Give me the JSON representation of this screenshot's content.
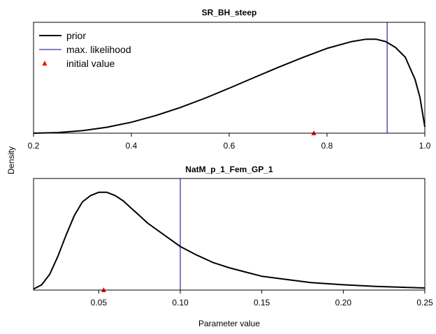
{
  "figure": {
    "shared_ylabel": "Density",
    "shared_xlabel": "Parameter value",
    "legend": {
      "position": "top-left",
      "entries": [
        {
          "label": "prior",
          "style": "line",
          "color": "#000000"
        },
        {
          "label": "max. likelihood",
          "style": "line",
          "color": "#00008b"
        },
        {
          "label": "initial value",
          "style": "triangle",
          "color": "#ff0000"
        }
      ]
    }
  },
  "chart_data": [
    {
      "type": "line",
      "title": "SR_BH_steep",
      "xlim": [
        0.2,
        1.0
      ],
      "xticks": [
        "0.2",
        "0.4",
        "0.6",
        "0.8",
        "1.0"
      ],
      "ylim": [
        0,
        1.05
      ],
      "yaxis": "density (no tick labels)",
      "series": [
        {
          "name": "prior",
          "x": [
            0.2,
            0.25,
            0.3,
            0.35,
            0.4,
            0.45,
            0.5,
            0.55,
            0.6,
            0.65,
            0.7,
            0.75,
            0.8,
            0.85,
            0.88,
            0.9,
            0.92,
            0.94,
            0.96,
            0.98,
            0.99,
            1.0
          ],
          "y": [
            0.0,
            0.006,
            0.024,
            0.056,
            0.104,
            0.167,
            0.243,
            0.33,
            0.426,
            0.525,
            0.623,
            0.716,
            0.803,
            0.867,
            0.89,
            0.89,
            0.868,
            0.812,
            0.72,
            0.51,
            0.34,
            0.06
          ]
        }
      ],
      "max_likelihood": 0.923,
      "initial_value": 0.773
    },
    {
      "type": "line",
      "title": "NatM_p_1_Fem_GP_1",
      "xlim": [
        0.01,
        0.25
      ],
      "xticks": [
        "0.05",
        "0.10",
        "0.15",
        "0.20",
        "0.25"
      ],
      "ylim": [
        0,
        1.05
      ],
      "yaxis": "density (no tick labels)",
      "series": [
        {
          "name": "prior",
          "x": [
            0.01,
            0.015,
            0.02,
            0.025,
            0.03,
            0.035,
            0.04,
            0.045,
            0.05,
            0.055,
            0.06,
            0.065,
            0.07,
            0.075,
            0.08,
            0.09,
            0.1,
            0.11,
            0.12,
            0.13,
            0.14,
            0.15,
            0.16,
            0.18,
            0.2,
            0.22,
            0.25
          ],
          "y": [
            0.01,
            0.05,
            0.15,
            0.32,
            0.52,
            0.7,
            0.83,
            0.89,
            0.92,
            0.92,
            0.89,
            0.84,
            0.77,
            0.7,
            0.63,
            0.52,
            0.41,
            0.33,
            0.26,
            0.21,
            0.17,
            0.13,
            0.11,
            0.07,
            0.05,
            0.035,
            0.02
          ]
        }
      ],
      "max_likelihood": 0.1,
      "initial_value": 0.053
    }
  ]
}
